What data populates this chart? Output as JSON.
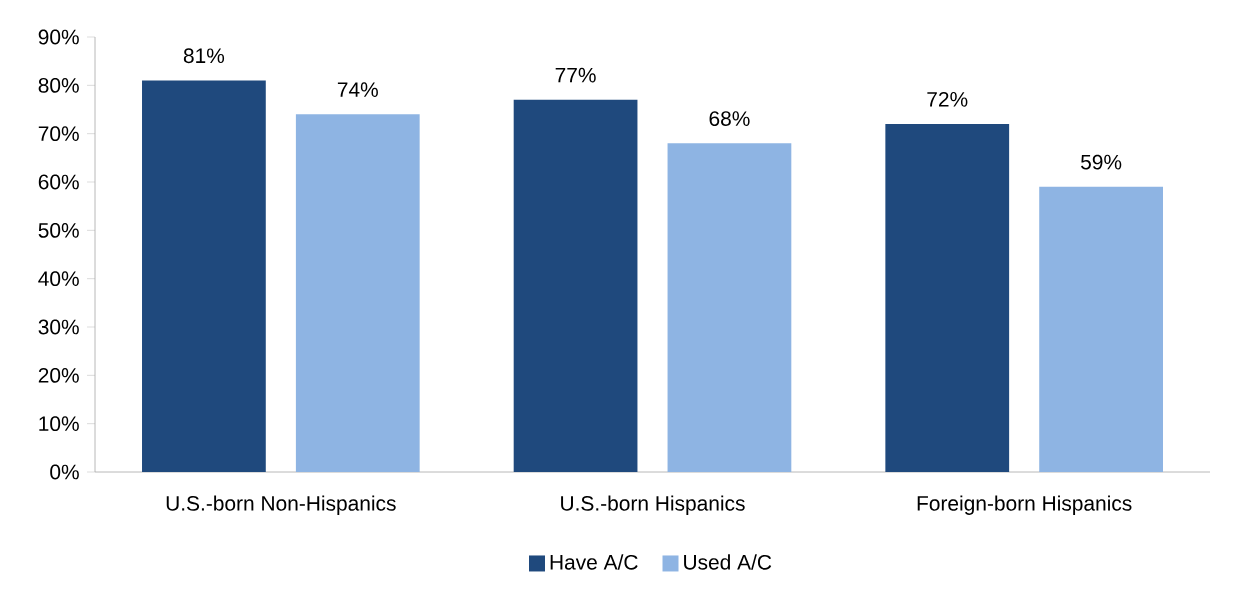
{
  "chart_data": {
    "type": "bar",
    "categories": [
      "U.S.-born Non-Hispanics",
      "U.S.-born Hispanics",
      "Foreign-born Hispanics"
    ],
    "series": [
      {
        "name": "Have A/C",
        "color": "#1f497d",
        "values": [
          81,
          77,
          72
        ],
        "value_labels": [
          "81%",
          "77%",
          "72%"
        ]
      },
      {
        "name": "Used A/C",
        "color": "#8eb4e3",
        "values": [
          74,
          68,
          59
        ],
        "value_labels": [
          "74%",
          "68%",
          "59%"
        ]
      }
    ],
    "ylim": [
      0,
      90
    ],
    "yticks": [
      {
        "value": 0,
        "label": "0%"
      },
      {
        "value": 10,
        "label": "10%"
      },
      {
        "value": 20,
        "label": "20%"
      },
      {
        "value": 30,
        "label": "30%"
      },
      {
        "value": 40,
        "label": "40%"
      },
      {
        "value": 50,
        "label": "50%"
      },
      {
        "value": 60,
        "label": "60%"
      },
      {
        "value": 70,
        "label": "70%"
      },
      {
        "value": 80,
        "label": "80%"
      },
      {
        "value": 90,
        "label": "90%"
      }
    ],
    "grid": false,
    "legend": "bottom"
  }
}
